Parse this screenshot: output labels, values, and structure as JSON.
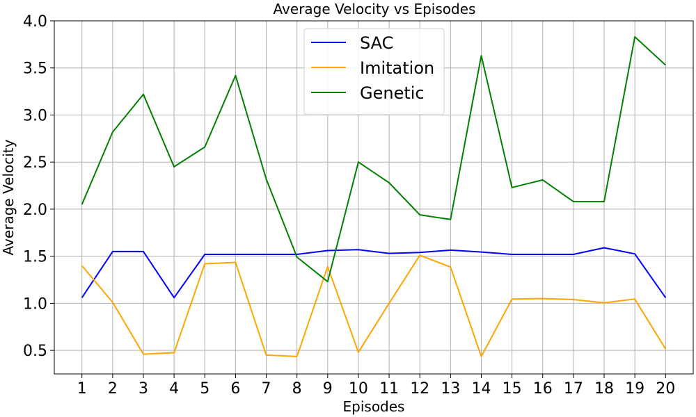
{
  "chart_data": {
    "type": "line",
    "title": "Average Velocity vs Episodes",
    "xlabel": "Episodes",
    "ylabel": "Average Velocity",
    "x": [
      1,
      2,
      3,
      4,
      5,
      6,
      7,
      8,
      9,
      10,
      11,
      12,
      13,
      14,
      15,
      16,
      17,
      18,
      19,
      20
    ],
    "xlim": [
      0.1,
      20.9
    ],
    "ylim": [
      0.25,
      4.0
    ],
    "yticks": [
      0.5,
      1.0,
      1.5,
      2.0,
      2.5,
      3.0,
      3.5,
      4.0
    ],
    "ytick_labels": [
      "0.5",
      "1.0",
      "1.5",
      "2.0",
      "2.5",
      "3.0",
      "3.5",
      "4.0"
    ],
    "grid": true,
    "legend_position": "top-center",
    "series": [
      {
        "name": "SAC",
        "color": "#0000ff",
        "values": [
          1.06,
          1.55,
          1.55,
          1.06,
          1.52,
          1.52,
          1.52,
          1.52,
          1.56,
          1.57,
          1.53,
          1.54,
          1.565,
          1.545,
          1.52,
          1.52,
          1.52,
          1.59,
          1.525,
          1.06
        ]
      },
      {
        "name": "Imitation",
        "color": "#ffa500",
        "values": [
          1.4,
          1.01,
          0.46,
          0.475,
          1.42,
          1.435,
          0.45,
          0.435,
          1.39,
          0.48,
          1.0,
          1.51,
          1.385,
          0.435,
          1.045,
          1.05,
          1.04,
          1.005,
          1.045,
          0.515
        ]
      },
      {
        "name": "Genetic",
        "color": "#008000",
        "values": [
          2.05,
          2.82,
          3.22,
          2.45,
          2.66,
          3.42,
          2.32,
          1.49,
          1.23,
          2.5,
          2.28,
          1.94,
          1.89,
          3.63,
          2.23,
          2.31,
          2.08,
          2.08,
          3.83,
          3.53
        ]
      }
    ]
  }
}
